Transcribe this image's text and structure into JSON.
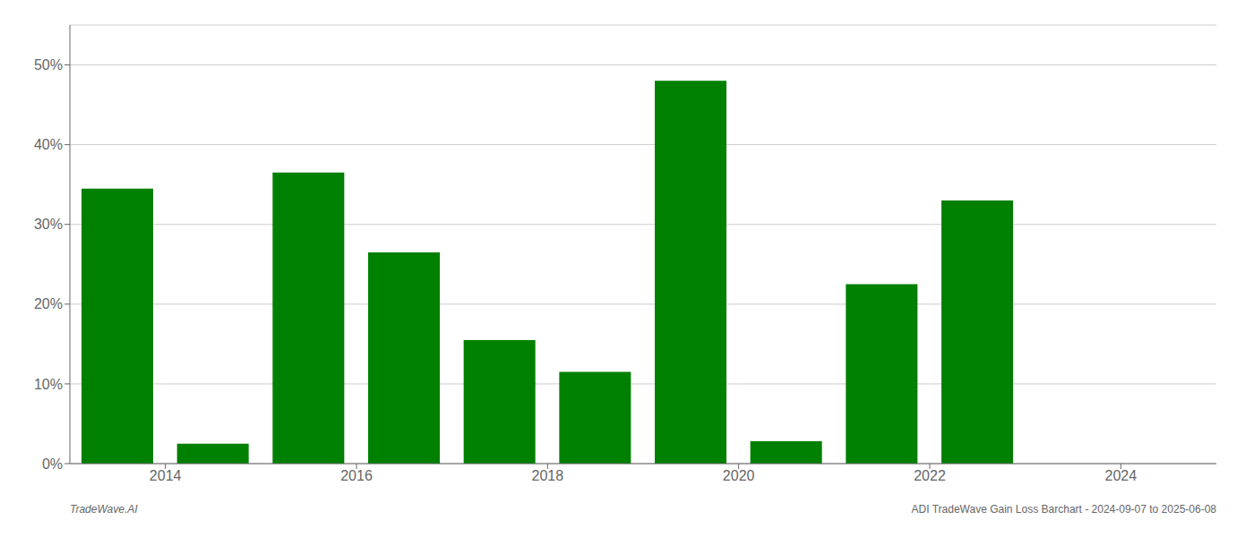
{
  "chart_data": {
    "type": "bar",
    "x": [
      2013.5,
      2014.5,
      2015.5,
      2016.5,
      2017.5,
      2018.5,
      2019.5,
      2020.5,
      2021.5,
      2022.5,
      2023.5
    ],
    "values": [
      34.5,
      2.5,
      36.5,
      26.5,
      15.5,
      11.5,
      48.0,
      2.8,
      22.5,
      33.0,
      0.0
    ],
    "color": "#008000",
    "xlim": [
      2013,
      2025
    ],
    "xticks": [
      2014,
      2016,
      2018,
      2020,
      2022,
      2024
    ],
    "ylim": [
      0,
      55
    ],
    "yticks": [
      {
        "value": 0,
        "label": "0%"
      },
      {
        "value": 10,
        "label": "10%"
      },
      {
        "value": 20,
        "label": "20%"
      },
      {
        "value": 30,
        "label": "30%"
      },
      {
        "value": 40,
        "label": "40%"
      },
      {
        "value": 50,
        "label": "50%"
      }
    ],
    "grid": "y",
    "annotations": [
      "TradeWave.AI",
      "ADI TradeWave Gain Loss Barchart - 2024-09-07 to 2025-06-08"
    ]
  }
}
